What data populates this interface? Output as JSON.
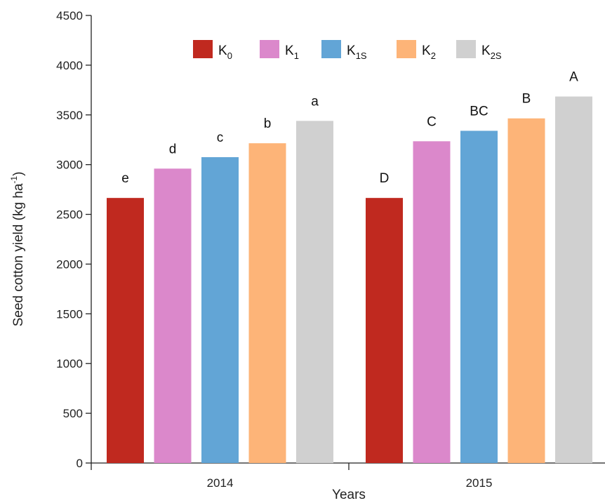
{
  "chart_data": {
    "type": "bar",
    "xlabel": "Years",
    "ylabel": "Seed cotton yield (kg ha",
    "ylabel_sup": "-1",
    "ylabel_close": ")",
    "ylim": [
      0,
      4500
    ],
    "yticks": [
      "0",
      "500",
      "1000",
      "1500",
      "2000",
      "2500",
      "3000",
      "3500",
      "4000",
      "4500"
    ],
    "categories": [
      "2014",
      "2015"
    ],
    "legend_position": "top",
    "series": [
      {
        "name": "K",
        "sub": "0",
        "color": "#c0291f",
        "values": [
          2665,
          2665
        ],
        "labels": [
          "e",
          "D"
        ]
      },
      {
        "name": "K",
        "sub": "1",
        "color": "#db88cb",
        "values": [
          2960,
          3235
        ],
        "labels": [
          "d",
          "C"
        ]
      },
      {
        "name": "K",
        "sub": "1S",
        "color": "#62a5d6",
        "values": [
          3075,
          3340
        ],
        "labels": [
          "c",
          "BC"
        ]
      },
      {
        "name": "K",
        "sub": "2",
        "color": "#fdb478",
        "values": [
          3215,
          3465
        ],
        "labels": [
          "b",
          "B"
        ]
      },
      {
        "name": "K",
        "sub": "2S",
        "color": "#d0d0d0",
        "values": [
          3440,
          3685
        ],
        "labels": [
          "a",
          "A"
        ]
      }
    ]
  }
}
